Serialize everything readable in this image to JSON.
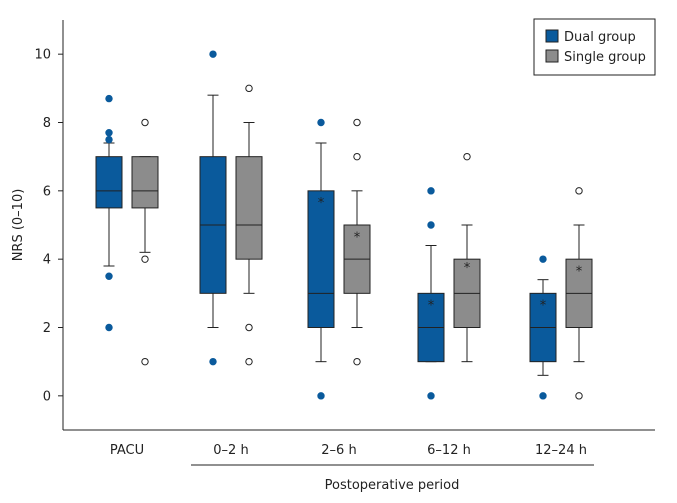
{
  "chart_data": {
    "type": "box",
    "title": "",
    "ylabel": "NRS (0–10)",
    "xlabel": "Postoperative period",
    "ylim": [
      -1,
      11
    ],
    "yticks": [
      0,
      2,
      4,
      6,
      8,
      10
    ],
    "grid": false,
    "legend_position": "top-right",
    "categories": [
      "PACU",
      "0–2 h",
      "2–6 h",
      "6–12 h",
      "12–24 h"
    ],
    "series": [
      {
        "name": "Dual group",
        "color": "#0a5a9c",
        "boxes": [
          {
            "whisker_low": 3.8,
            "q1": 5.5,
            "median": 6,
            "q3": 7,
            "whisker_high": 7.4,
            "mean": null,
            "outliers": [
              8.7,
              7.7,
              7.5,
              3.5,
              2
            ]
          },
          {
            "whisker_low": 2,
            "q1": 3,
            "median": 5,
            "q3": 7,
            "whisker_high": 8.8,
            "mean": null,
            "outliers": [
              10,
              1
            ]
          },
          {
            "whisker_low": 1,
            "q1": 2,
            "median": 3,
            "q3": 6,
            "whisker_high": 7.4,
            "mean": 5.7,
            "outliers": [
              8,
              0
            ]
          },
          {
            "whisker_low": 1,
            "q1": 1,
            "median": 2,
            "q3": 3,
            "whisker_high": 4.4,
            "mean": 2.7,
            "outliers": [
              6,
              5,
              0
            ]
          },
          {
            "whisker_low": 0.6,
            "q1": 1,
            "median": 2,
            "q3": 3,
            "whisker_high": 3.4,
            "mean": 2.7,
            "outliers": [
              4,
              0
            ]
          }
        ]
      },
      {
        "name": "Single group",
        "color": "#8c8c8c",
        "boxes": [
          {
            "whisker_low": 4.2,
            "q1": 5.5,
            "median": 6,
            "q3": 7,
            "whisker_high": 7,
            "mean": null,
            "outliers": [
              8,
              4,
              1
            ]
          },
          {
            "whisker_low": 3,
            "q1": 4,
            "median": 5,
            "q3": 7,
            "whisker_high": 8,
            "mean": null,
            "outliers": [
              9,
              2,
              1
            ]
          },
          {
            "whisker_low": 2,
            "q1": 3,
            "median": 4,
            "q3": 5,
            "whisker_high": 6,
            "mean": 4.7,
            "outliers": [
              8,
              7,
              1
            ]
          },
          {
            "whisker_low": 1,
            "q1": 2,
            "median": 3,
            "q3": 4,
            "whisker_high": 5,
            "mean": 3.8,
            "outliers": [
              7
            ]
          },
          {
            "whisker_low": 1,
            "q1": 2,
            "median": 3,
            "q3": 4,
            "whisker_high": 5,
            "mean": 3.7,
            "outliers": [
              6,
              0
            ]
          }
        ]
      }
    ]
  }
}
